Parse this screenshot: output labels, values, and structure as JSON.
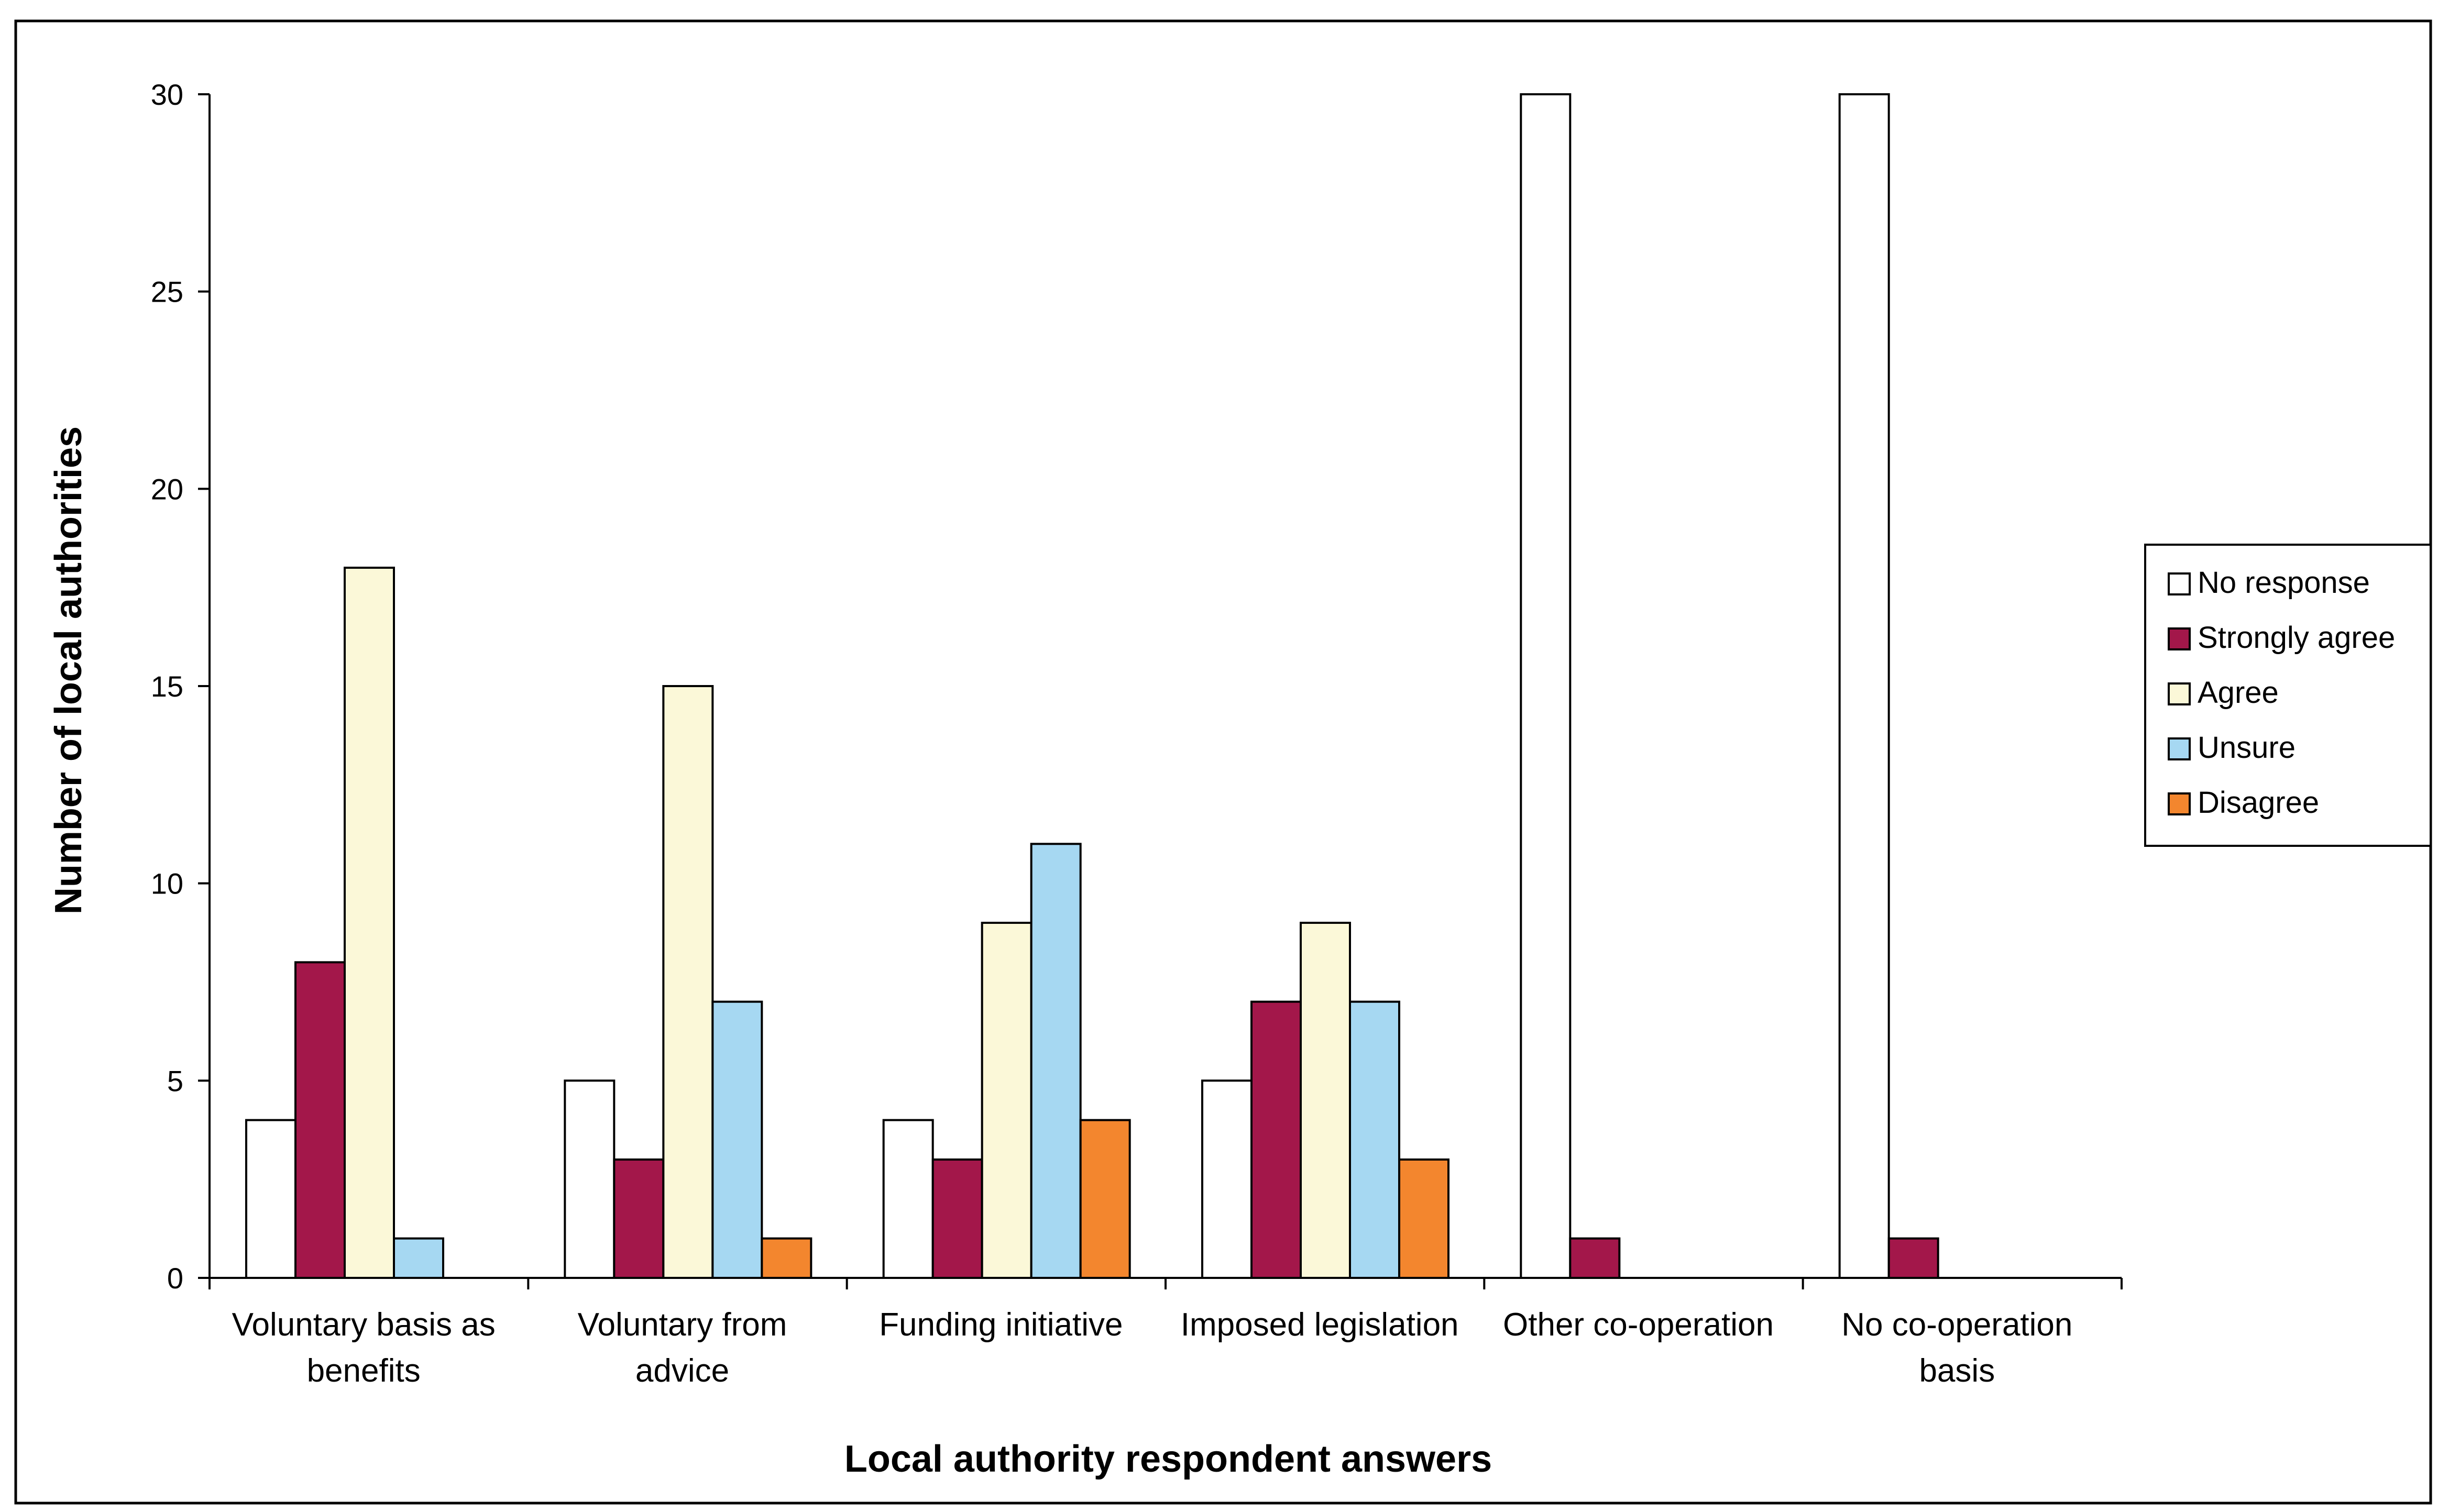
{
  "chart_data": {
    "type": "bar",
    "title": "",
    "xlabel": "Local authority respondent answers",
    "ylabel": "Number of local authorities",
    "ylim": [
      0,
      30
    ],
    "yticks": [
      0,
      5,
      10,
      15,
      20,
      25,
      30
    ],
    "grid": false,
    "legend_position": "right",
    "categories": [
      [
        "Voluntary basis as",
        "benefits"
      ],
      [
        "Voluntary from",
        "advice"
      ],
      [
        "Funding initiative"
      ],
      [
        "Imposed legislation"
      ],
      [
        "Other co-operation"
      ],
      [
        "No co-operation",
        "basis"
      ]
    ],
    "series": [
      {
        "name": "No response",
        "color": "#ffffff",
        "values": [
          4,
          5,
          4,
          5,
          30,
          30
        ]
      },
      {
        "name": "Strongly agree",
        "color": "#a3174a",
        "values": [
          8,
          3,
          3,
          7,
          1,
          1
        ]
      },
      {
        "name": "Agree",
        "color": "#fbf8d8",
        "values": [
          18,
          15,
          9,
          9,
          0,
          0
        ]
      },
      {
        "name": "Unsure",
        "color": "#a6d8f2",
        "values": [
          1,
          7,
          11,
          7,
          0,
          0
        ]
      },
      {
        "name": "Disagree",
        "color": "#f3862e",
        "values": [
          0,
          1,
          4,
          3,
          0,
          0
        ]
      }
    ]
  }
}
